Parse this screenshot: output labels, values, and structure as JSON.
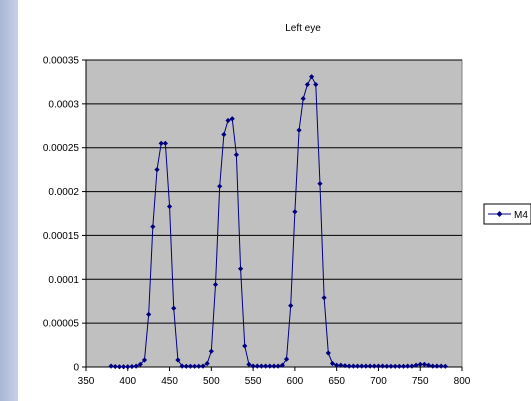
{
  "colors": {
    "plot_background": "#c0c0c0",
    "series": "#000080",
    "gridline": "#000000",
    "strip": "#b7c1df"
  },
  "chart_data": {
    "type": "line",
    "title": "Left eye",
    "xlabel": "",
    "ylabel": "",
    "xlim": [
      350,
      800
    ],
    "ylim": [
      0,
      0.00035
    ],
    "xticks": [
      350,
      400,
      450,
      500,
      550,
      600,
      650,
      700,
      750,
      800
    ],
    "xtick_labels": [
      "350",
      "400",
      "450",
      "500",
      "550",
      "600",
      "650",
      "700",
      "750",
      "800"
    ],
    "yticks": [
      0,
      5e-05,
      0.0001,
      0.00015,
      0.0002,
      0.00025,
      0.0003,
      0.00035
    ],
    "ytick_labels": [
      "0",
      "0.00005",
      "0.0001",
      "0.00015",
      "0.0002",
      "0.00025",
      "0.0003",
      "0.00035"
    ],
    "grid": true,
    "legend_position": "right",
    "series": [
      {
        "name": "M4",
        "marker": "diamond",
        "x": [
          380,
          385,
          390,
          395,
          400,
          405,
          410,
          415,
          420,
          425,
          430,
          435,
          440,
          445,
          450,
          455,
          460,
          465,
          470,
          475,
          480,
          485,
          490,
          495,
          500,
          505,
          510,
          515,
          520,
          525,
          530,
          535,
          540,
          545,
          550,
          555,
          560,
          565,
          570,
          575,
          580,
          585,
          590,
          595,
          600,
          605,
          610,
          615,
          620,
          625,
          630,
          635,
          640,
          645,
          650,
          655,
          660,
          665,
          670,
          675,
          680,
          685,
          690,
          695,
          700,
          705,
          710,
          715,
          720,
          725,
          730,
          735,
          740,
          745,
          750,
          755,
          760,
          765,
          770,
          775,
          780
        ],
        "values": [
          1e-06,
          5e-07,
          3e-07,
          3e-07,
          3e-07,
          5e-07,
          1e-06,
          3e-06,
          8e-06,
          6e-05,
          0.00016,
          0.000225,
          0.000255,
          0.000255,
          0.000183,
          6.7e-05,
          8e-06,
          1e-06,
          8e-07,
          8e-07,
          8e-07,
          8e-07,
          1e-06,
          4e-06,
          1.8e-05,
          9.4e-05,
          0.000206,
          0.000265,
          0.000281,
          0.000283,
          0.000242,
          0.000112,
          2.4e-05,
          3e-06,
          1e-06,
          1e-06,
          1e-06,
          1e-06,
          1e-06,
          1e-06,
          1e-06,
          2e-06,
          9e-06,
          7e-05,
          0.000177,
          0.00027,
          0.000306,
          0.000322,
          0.000331,
          0.000322,
          0.000209,
          7.9e-05,
          1.6e-05,
          4e-06,
          2e-06,
          2e-06,
          1.5e-06,
          1e-06,
          1e-06,
          1e-06,
          1e-06,
          1e-06,
          1e-06,
          1e-06,
          1e-06,
          1e-06,
          8e-07,
          8e-07,
          8e-07,
          8e-07,
          8e-07,
          1e-06,
          1e-06,
          2e-06,
          3e-06,
          3e-06,
          2e-06,
          1e-06,
          1e-06,
          1e-06,
          8e-07
        ]
      }
    ]
  }
}
